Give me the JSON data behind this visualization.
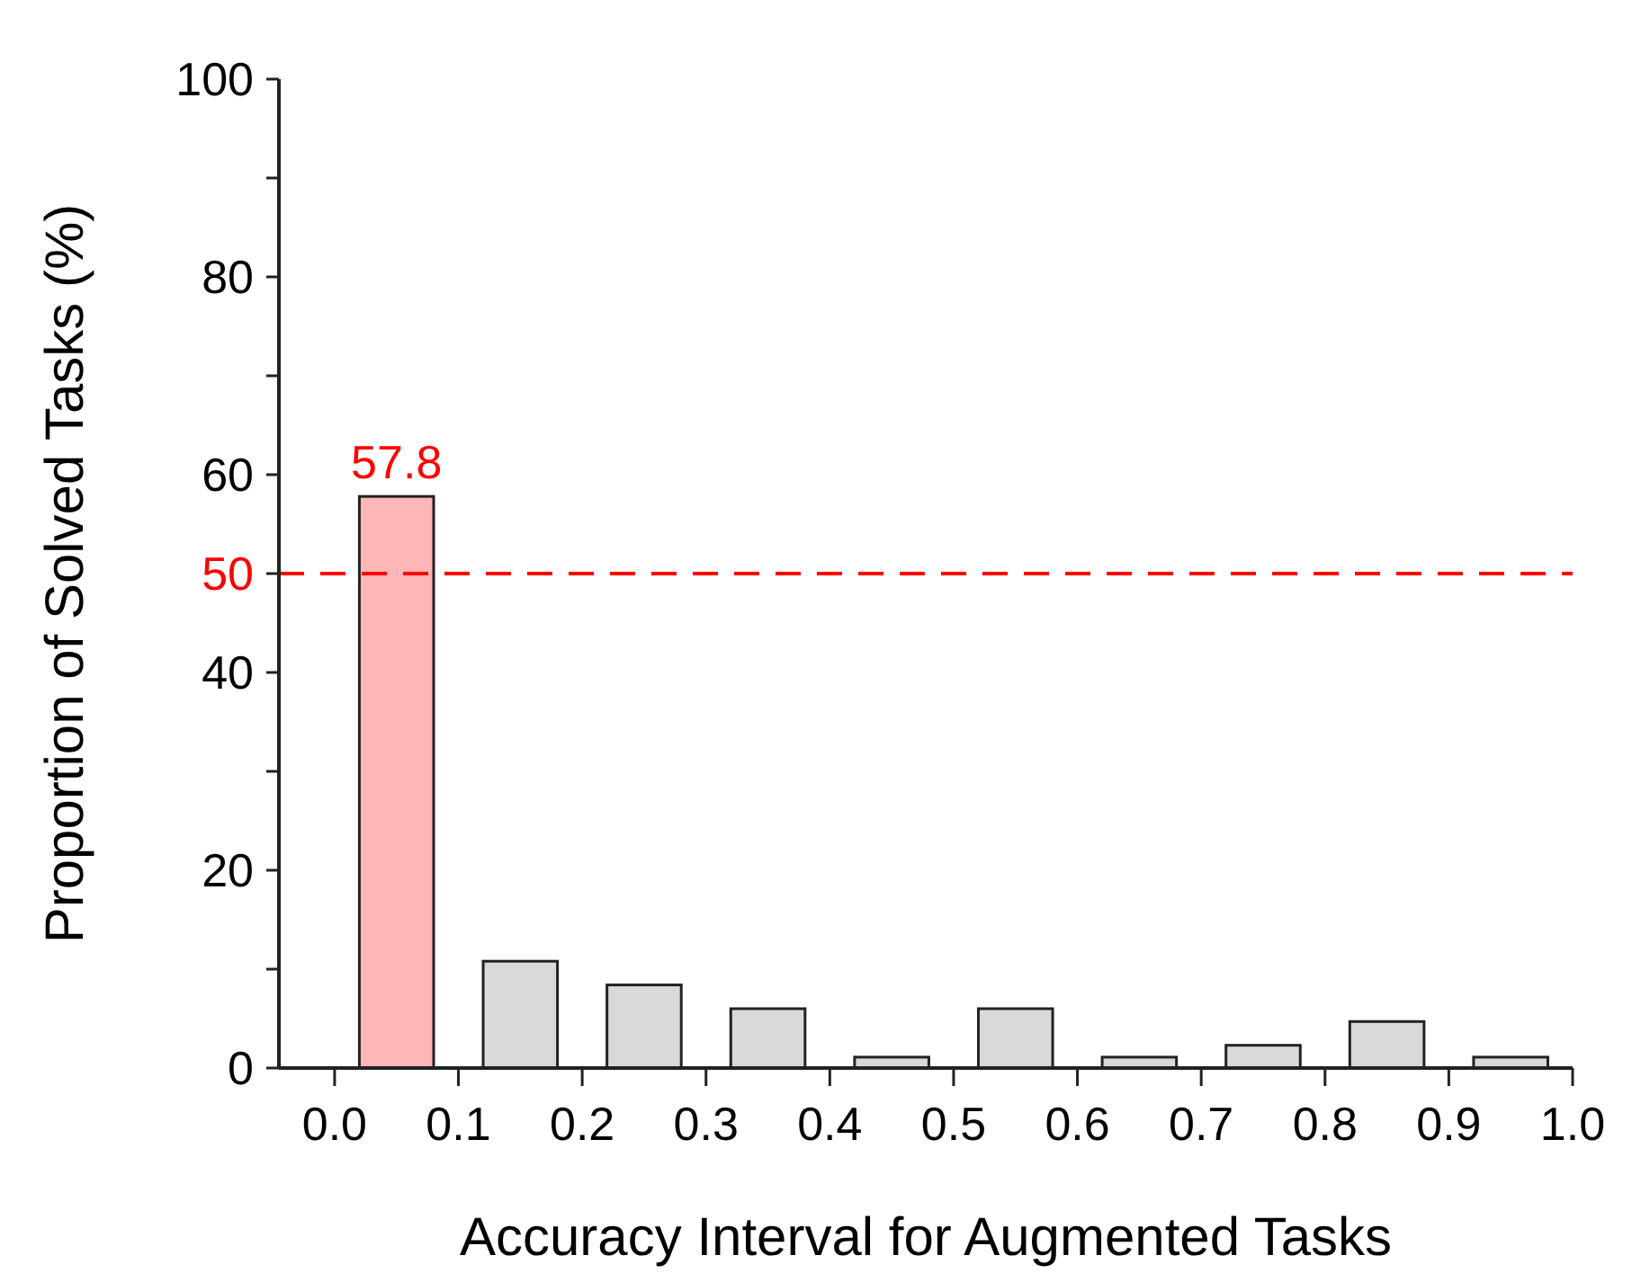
{
  "chart_data": {
    "type": "bar",
    "xlabel": "Accuracy Interval for Augmented Tasks",
    "ylabel": "Proportion of Solved Tasks (%)",
    "x": [
      0.05,
      0.15,
      0.25,
      0.35,
      0.45,
      0.55,
      0.65,
      0.75,
      0.85,
      0.95
    ],
    "values": [
      57.8,
      10.8,
      8.4,
      6.0,
      1.1,
      6.0,
      1.1,
      2.3,
      4.7,
      1.1
    ],
    "colors": [
      "#ffb6b6",
      "#d9d9d9",
      "#d9d9d9",
      "#d9d9d9",
      "#d9d9d9",
      "#d9d9d9",
      "#d9d9d9",
      "#d9d9d9",
      "#d9d9d9",
      "#d9d9d9"
    ],
    "value_labels": [
      "57.8",
      null,
      null,
      null,
      null,
      null,
      null,
      null,
      null,
      null
    ],
    "xlim": [
      -0.045,
      1.0
    ],
    "xticks": [
      {
        "value": 0,
        "label": "0.0"
      },
      0.1,
      0.2,
      0.3,
      0.4,
      0.5,
      0.6,
      0.7,
      0.8,
      0.9,
      {
        "value": 1,
        "label": "1.0"
      }
    ],
    "ylim": [
      0,
      100
    ],
    "yticks": [
      0,
      {
        "value": 10,
        "label": null
      },
      20,
      {
        "value": 30,
        "label": null
      },
      40,
      {
        "value": 50,
        "label": null
      },
      60,
      {
        "value": 70,
        "label": null
      },
      80,
      {
        "value": 90,
        "label": null
      },
      100
    ],
    "ref_lines": [
      {
        "axis": "y",
        "value": 50,
        "label": "50",
        "color": "#ff0000",
        "line_style": "dashed"
      }
    ],
    "grid": false
  }
}
